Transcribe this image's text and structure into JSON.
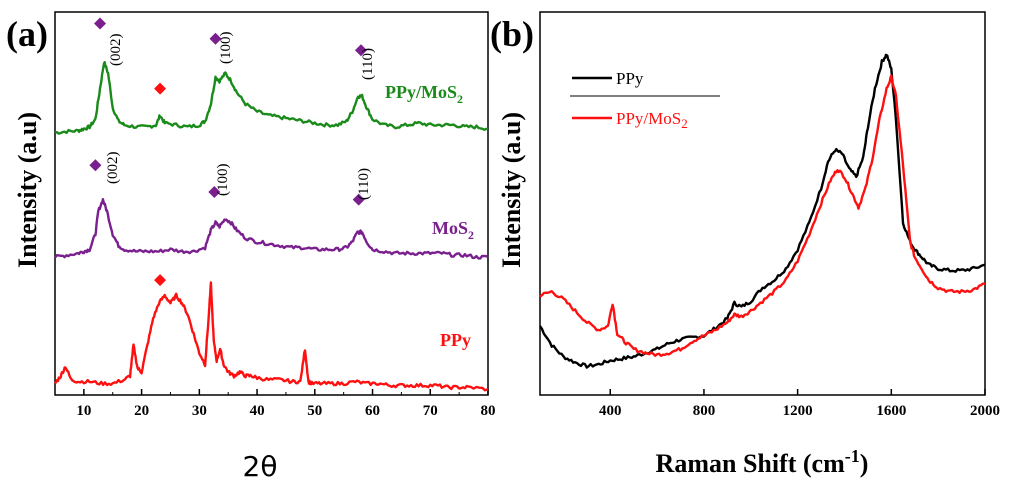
{
  "colors": {
    "ppy_mos2_xrd": "#1a8a1a",
    "mos2_xrd": "#7a1f8e",
    "ppy_xrd": "#ff1010",
    "diamond_purple": "#7a1f8e",
    "diamond_red": "#ff1010",
    "raman_ppy": "#000000",
    "raman_ppy_mos2": "#ff1010"
  },
  "chart_data": [
    {
      "type": "line",
      "panel_label": "(a)",
      "xlabel": "2θ",
      "ylabel": "Intensity (a.u)",
      "xlim": [
        5,
        80
      ],
      "ylim": [
        0,
        100
      ],
      "xticks": [
        10,
        20,
        30,
        40,
        50,
        60,
        70,
        80
      ],
      "grid": false,
      "series_labels": {
        "ppy_mos2_main": "PPy/MoS",
        "ppy_mos2_sub": "2",
        "mos2_main": "MoS",
        "mos2_sub": "2",
        "ppy": "PPy"
      },
      "peak_labels": {
        "top_002": "(002)",
        "top_100": "(100)",
        "top_110": "(110)",
        "mid_002": "(002)",
        "mid_100": "(100)",
        "mid_110": "(110)"
      },
      "markers": {
        "purple_diamonds": [
          {
            "x": 12.8,
            "y": 97
          },
          {
            "x": 32.8,
            "y": 93
          },
          {
            "x": 58.0,
            "y": 90
          },
          {
            "x": 12.0,
            "y": 60
          },
          {
            "x": 32.6,
            "y": 53
          },
          {
            "x": 57.6,
            "y": 51
          }
        ],
        "red_diamonds": [
          {
            "x": 23.2,
            "y": 80
          },
          {
            "x": 23.2,
            "y": 30
          }
        ]
      },
      "series": [
        {
          "key": "PPy/MoS2",
          "color": "#1a8a1a",
          "x": [
            5,
            7,
            9,
            10,
            11,
            12,
            12.8,
            13.5,
            14.2,
            15,
            16,
            17,
            19,
            21,
            22.5,
            23.2,
            24,
            26,
            28,
            30,
            31,
            32,
            32.8,
            33.5,
            34.5,
            35.5,
            36.5,
            38,
            40,
            42,
            44,
            46,
            48,
            50,
            52,
            54,
            55.5,
            56.5,
            57.5,
            58.2,
            59,
            60,
            62,
            64,
            66,
            68,
            70,
            72,
            74,
            76,
            78,
            80
          ],
          "y": [
            68.5,
            68.8,
            69,
            69.5,
            70,
            72,
            80,
            87,
            84,
            75,
            71.5,
            70.5,
            70,
            70,
            70.5,
            73,
            71,
            70.5,
            70,
            70.5,
            71.5,
            76,
            83,
            82,
            84,
            82,
            79,
            76,
            74,
            73,
            72.5,
            72,
            71.5,
            71,
            70.5,
            70.5,
            71.5,
            74,
            78,
            78,
            75,
            72,
            70.5,
            70,
            70.5,
            71,
            70.5,
            70.5,
            70.5,
            70,
            70,
            69.5
          ]
        },
        {
          "key": "MoS2",
          "color": "#7a1f8e",
          "x": [
            5,
            7,
            9,
            10,
            11,
            12,
            12.5,
            13.3,
            14,
            15,
            16,
            17,
            19,
            21,
            23,
            25,
            27,
            29,
            31,
            32,
            32.8,
            33.5,
            34.5,
            35.5,
            36.5,
            38,
            40,
            42,
            44,
            46,
            48,
            50,
            52,
            54,
            55.5,
            56.5,
            57.4,
            58.2,
            59,
            60,
            62,
            64,
            66,
            68,
            70,
            72,
            74,
            76,
            78,
            80
          ],
          "y": [
            36,
            36.5,
            37,
            37.5,
            38,
            42,
            48,
            51,
            48,
            42,
            39,
            38,
            37.5,
            37.5,
            37.5,
            38,
            37.5,
            37.5,
            38.5,
            43,
            45,
            44,
            46,
            45,
            43,
            41,
            40,
            39.5,
            39,
            38.5,
            38.5,
            38,
            38,
            38,
            38.5,
            40,
            42.5,
            42.5,
            40,
            38,
            37.5,
            37,
            37,
            37,
            37,
            37,
            36.5,
            36.5,
            36,
            36
          ]
        },
        {
          "key": "PPy",
          "color": "#ff1010",
          "x": [
            5,
            6,
            6.8,
            7.8,
            9,
            11,
            13,
            15,
            17,
            18,
            18.6,
            19.3,
            20,
            21,
            22,
            23,
            24,
            25,
            26,
            27,
            28,
            29,
            30,
            31,
            31.6,
            32,
            32.5,
            33,
            33.6,
            34.2,
            35,
            36,
            37,
            38,
            39,
            40,
            42,
            44,
            46,
            47.5,
            48.3,
            48.9,
            49.5,
            51,
            53,
            55,
            57,
            59,
            61,
            63,
            65,
            67,
            69,
            71,
            73,
            75,
            77,
            80
          ],
          "y": [
            3,
            5,
            7.5,
            4,
            3.5,
            3.5,
            3,
            3,
            4,
            5,
            13,
            7,
            6,
            13,
            20,
            24,
            26,
            24,
            26,
            24,
            21,
            16,
            11,
            8,
            20,
            29,
            14,
            9,
            12,
            8,
            6,
            5,
            6,
            5,
            5,
            4.5,
            4,
            4,
            3.5,
            3.5,
            12,
            3.5,
            3,
            3,
            3,
            3,
            3.5,
            3,
            3,
            2.5,
            2.5,
            2.5,
            2.5,
            2.5,
            2,
            2,
            2,
            1.5
          ]
        }
      ]
    },
    {
      "type": "line",
      "panel_label": "(b)",
      "xlabel": "Raman Shift (cm",
      "xlabel_sup": "-1",
      "xlabel_end": ")",
      "ylabel": "Intensity (a.u)",
      "xlim": [
        100,
        2000
      ],
      "ylim": [
        0,
        100
      ],
      "xticks": [
        400,
        800,
        1200,
        1600,
        2000
      ],
      "legend": "top-left",
      "grid": false,
      "series": [
        {
          "name": "PPy",
          "name_main": "PPy",
          "color": "#000000",
          "x": [
            100,
            150,
            200,
            250,
            300,
            350,
            400,
            450,
            500,
            550,
            600,
            650,
            700,
            750,
            800,
            850,
            900,
            930,
            960,
            1000,
            1050,
            1100,
            1150,
            1200,
            1250,
            1300,
            1330,
            1360,
            1390,
            1420,
            1450,
            1480,
            1500,
            1530,
            1560,
            1580,
            1600,
            1620,
            1650,
            1680,
            1700,
            1730,
            1760,
            1800,
            1850,
            1900,
            1950,
            2000
          ],
          "y": [
            18,
            13,
            10,
            8.5,
            7.5,
            8,
            9,
            9.5,
            10,
            11,
            12,
            13.5,
            14.5,
            15,
            15.5,
            17.5,
            20,
            24,
            23,
            24.5,
            28,
            30,
            33,
            38,
            45,
            54,
            61,
            64,
            63,
            59,
            57,
            62,
            70,
            80,
            87,
            89,
            85,
            72,
            45,
            40,
            38,
            36,
            34,
            33,
            32.5,
            32.5,
            33,
            34
          ]
        },
        {
          "name": "PPy/MoS2",
          "name_main": "PPy/MoS",
          "name_sub": "2",
          "color": "#ff1010",
          "x": [
            100,
            150,
            200,
            250,
            300,
            350,
            390,
            410,
            430,
            460,
            500,
            550,
            600,
            650,
            700,
            750,
            800,
            850,
            900,
            930,
            960,
            1000,
            1050,
            1100,
            1150,
            1200,
            1250,
            1300,
            1340,
            1370,
            1400,
            1430,
            1460,
            1490,
            1520,
            1550,
            1580,
            1600,
            1620,
            1650,
            1680,
            1700,
            1730,
            1760,
            1800,
            1850,
            1900,
            1950,
            2000
          ],
          "y": [
            26,
            27,
            25,
            22,
            19,
            17,
            18,
            24,
            16,
            14,
            12,
            11,
            10.5,
            11,
            12,
            14,
            15.5,
            17,
            19,
            21,
            20.5,
            22,
            24.5,
            27,
            30,
            35,
            42,
            50,
            56,
            59,
            57,
            53,
            49,
            54,
            62,
            72,
            80,
            83,
            78,
            60,
            40,
            36,
            33,
            30,
            28,
            27,
            27,
            27.5,
            29
          ]
        }
      ]
    }
  ]
}
